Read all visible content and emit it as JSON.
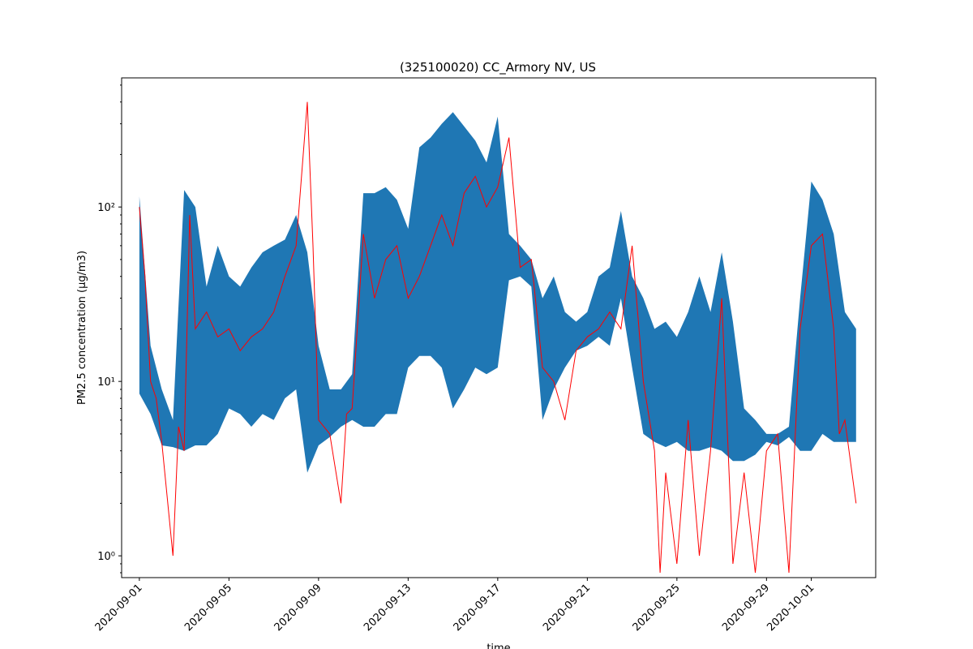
{
  "chart_data": {
    "type": "area",
    "title": "(325100020) CC_Armory NV, US",
    "xlabel": "time",
    "ylabel": "PM2.5 concentration (μg/m3)",
    "yscale": "log",
    "ylim": [
      0.75,
      550
    ],
    "xlim": [
      "2020-08-31T05:00",
      "2020-10-03T21:00"
    ],
    "x_ticks": [
      "2020-09-01",
      "2020-09-05",
      "2020-09-09",
      "2020-09-13",
      "2020-09-17",
      "2020-09-21",
      "2020-09-25",
      "2020-09-29",
      "2020-10-01"
    ],
    "y_ticks": [
      {
        "value": 1,
        "label": "10⁰"
      },
      {
        "value": 10,
        "label": "10¹"
      },
      {
        "value": 100,
        "label": "10²"
      }
    ],
    "grid": false,
    "colors": {
      "band": "#1f77b4",
      "observed": "#ff0000"
    },
    "series": [
      {
        "kind": "band",
        "x": [
          "2020-09-01",
          "2020-09-01T12:00",
          "2020-09-02",
          "2020-09-02T12:00",
          "2020-09-03",
          "2020-09-03T12:00",
          "2020-09-04",
          "2020-09-04T12:00",
          "2020-09-05",
          "2020-09-05T12:00",
          "2020-09-06",
          "2020-09-06T12:00",
          "2020-09-07",
          "2020-09-07T12:00",
          "2020-09-08",
          "2020-09-08T12:00",
          "2020-09-09",
          "2020-09-09T12:00",
          "2020-09-10",
          "2020-09-10T12:00",
          "2020-09-11",
          "2020-09-11T12:00",
          "2020-09-12",
          "2020-09-12T12:00",
          "2020-09-13",
          "2020-09-13T12:00",
          "2020-09-14",
          "2020-09-14T12:00",
          "2020-09-15",
          "2020-09-15T12:00",
          "2020-09-16",
          "2020-09-16T12:00",
          "2020-09-17",
          "2020-09-17T12:00",
          "2020-09-18",
          "2020-09-18T12:00",
          "2020-09-19",
          "2020-09-19T12:00",
          "2020-09-20",
          "2020-09-20T12:00",
          "2020-09-21",
          "2020-09-21T12:00",
          "2020-09-22",
          "2020-09-22T12:00",
          "2020-09-23",
          "2020-09-23T12:00",
          "2020-09-24",
          "2020-09-24T12:00",
          "2020-09-25",
          "2020-09-25T12:00",
          "2020-09-26",
          "2020-09-26T12:00",
          "2020-09-27",
          "2020-09-27T12:00",
          "2020-09-28",
          "2020-09-28T12:00",
          "2020-09-29",
          "2020-09-29T12:00",
          "2020-09-30",
          "2020-09-30T12:00",
          "2020-10-01",
          "2020-10-01T12:00",
          "2020-10-02",
          "2020-10-02T12:00",
          "2020-10-03"
        ],
        "low": [
          8.5,
          6.5,
          4.3,
          4.2,
          4.0,
          4.3,
          4.3,
          5.0,
          7.0,
          6.5,
          5.5,
          6.5,
          6.0,
          8.0,
          9.0,
          3.0,
          4.3,
          4.8,
          5.5,
          6.0,
          5.5,
          5.5,
          6.5,
          6.5,
          12.0,
          14.0,
          14.0,
          12.0,
          7.0,
          9.0,
          12.0,
          11.0,
          12.0,
          38.0,
          40.0,
          35.0,
          6.0,
          9.0,
          12.0,
          15.0,
          16.0,
          18.0,
          16.0,
          30.0,
          12.0,
          5.0,
          4.5,
          4.2,
          4.5,
          4.0,
          4.0,
          4.2,
          4.0,
          3.5,
          3.5,
          3.8,
          4.5,
          4.3,
          4.8,
          4.0,
          4.0,
          5.0,
          4.5,
          4.5,
          4.5
        ],
        "high": [
          115,
          16,
          9,
          6,
          125,
          100,
          35,
          60,
          40,
          35,
          45,
          55,
          60,
          65,
          90,
          55,
          16,
          9,
          9,
          11,
          120,
          120,
          130,
          110,
          75,
          220,
          250,
          300,
          350,
          290,
          240,
          180,
          330,
          70,
          60,
          50,
          30,
          40,
          25,
          22,
          25,
          40,
          45,
          95,
          40,
          30,
          20,
          22,
          18,
          25,
          40,
          25,
          55,
          22,
          7,
          6,
          5,
          5,
          5.5,
          30,
          140,
          110,
          70,
          25,
          20
        ]
      },
      {
        "kind": "line",
        "x": [
          "2020-09-01",
          "2020-09-01T06:00",
          "2020-09-01T12:00",
          "2020-09-01T18:00",
          "2020-09-02",
          "2020-09-02T12:00",
          "2020-09-02T18:00",
          "2020-09-03",
          "2020-09-03T06:00",
          "2020-09-03T12:00",
          "2020-09-04",
          "2020-09-04T12:00",
          "2020-09-05",
          "2020-09-05T12:00",
          "2020-09-06",
          "2020-09-06T12:00",
          "2020-09-07",
          "2020-09-07T12:00",
          "2020-09-08",
          "2020-09-08T12:00",
          "2020-09-08T18:00",
          "2020-09-09",
          "2020-09-09T12:00",
          "2020-09-10",
          "2020-09-10T06:00",
          "2020-09-10T12:00",
          "2020-09-11",
          "2020-09-11T12:00",
          "2020-09-12",
          "2020-09-12T12:00",
          "2020-09-13",
          "2020-09-13T12:00",
          "2020-09-14",
          "2020-09-14T12:00",
          "2020-09-15",
          "2020-09-15T12:00",
          "2020-09-16",
          "2020-09-16T12:00",
          "2020-09-17",
          "2020-09-17T12:00",
          "2020-09-18",
          "2020-09-18T12:00",
          "2020-09-19",
          "2020-09-19T12:00",
          "2020-09-20",
          "2020-09-20T12:00",
          "2020-09-21",
          "2020-09-21T12:00",
          "2020-09-22",
          "2020-09-22T12:00",
          "2020-09-23",
          "2020-09-23T12:00",
          "2020-09-24",
          "2020-09-24T06:00",
          "2020-09-24T12:00",
          "2020-09-25",
          "2020-09-25T12:00",
          "2020-09-26",
          "2020-09-26T12:00",
          "2020-09-27",
          "2020-09-27T12:00",
          "2020-09-28",
          "2020-09-28T12:00",
          "2020-09-29",
          "2020-09-29T12:00",
          "2020-09-30",
          "2020-09-30T12:00",
          "2020-10-01",
          "2020-10-01T12:00",
          "2020-10-02",
          "2020-10-02T06:00",
          "2020-10-02T12:00",
          "2020-10-03"
        ],
        "y": [
          100,
          40,
          10,
          8,
          4.5,
          1.0,
          5.5,
          4.0,
          90,
          20,
          25,
          18,
          20,
          15,
          18,
          20,
          25,
          40,
          60,
          400,
          60,
          6.0,
          5.0,
          2.0,
          6.5,
          7.0,
          70,
          30,
          50,
          60,
          30,
          40,
          60,
          90,
          60,
          120,
          150,
          100,
          130,
          250,
          45,
          50,
          12,
          10,
          6,
          15,
          18,
          20,
          25,
          20,
          60,
          10,
          4.0,
          0.8,
          3.0,
          0.9,
          6.0,
          1.0,
          4.0,
          30,
          0.9,
          3.0,
          0.8,
          4.0,
          5.0,
          0.8,
          20,
          60,
          70,
          20,
          5.0,
          6.0,
          2.0
        ]
      }
    ]
  }
}
